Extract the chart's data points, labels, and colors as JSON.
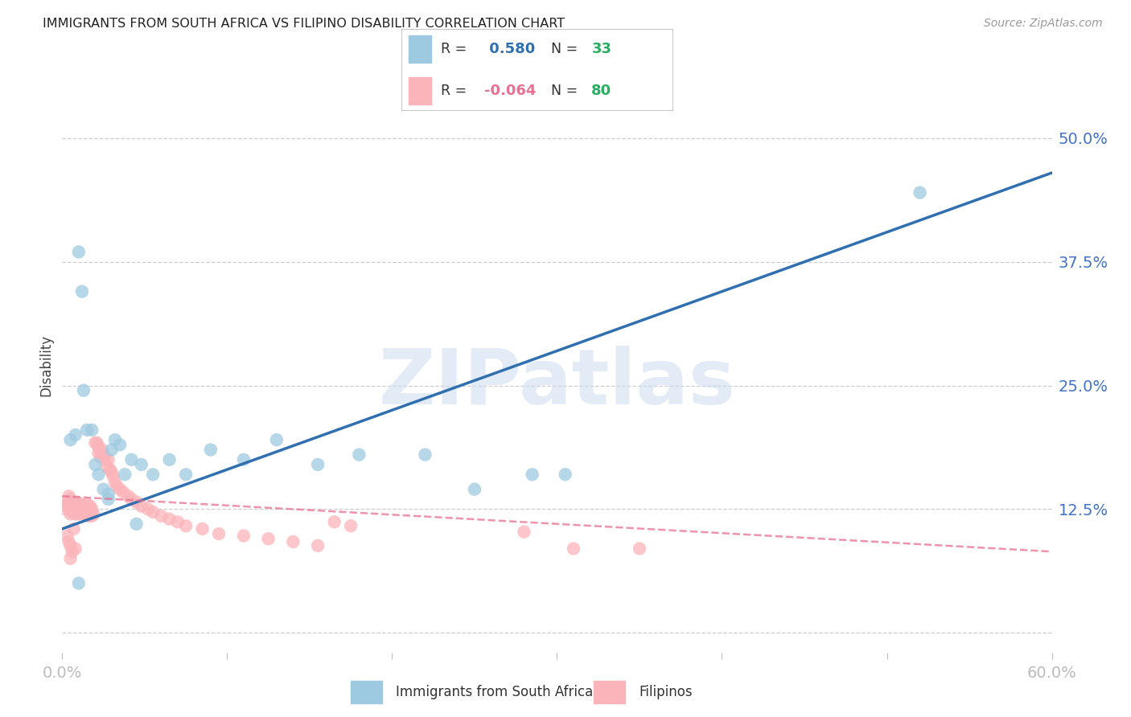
{
  "title": "IMMIGRANTS FROM SOUTH AFRICA VS FILIPINO DISABILITY CORRELATION CHART",
  "source": "Source: ZipAtlas.com",
  "ylabel": "Disability",
  "watermark": "ZIPatlas",
  "x_min": 0.0,
  "x_max": 0.6,
  "y_min": -0.02,
  "y_max": 0.56,
  "y_ticks": [
    0.0,
    0.125,
    0.25,
    0.375,
    0.5
  ],
  "y_tick_labels": [
    "",
    "12.5%",
    "25.0%",
    "37.5%",
    "50.0%"
  ],
  "x_ticks": [
    0.0,
    0.1,
    0.2,
    0.3,
    0.4,
    0.5,
    0.6
  ],
  "x_tick_labels": [
    "0.0%",
    "",
    "",
    "",
    "",
    "",
    "60.0%"
  ],
  "blue_R": 0.58,
  "blue_N": 33,
  "pink_R": -0.064,
  "pink_N": 80,
  "blue_label": "Immigrants from South Africa",
  "pink_label": "Filipinos",
  "blue_dot_color": "#9ecae1",
  "pink_dot_color": "#fbb4b9",
  "blue_line_color": "#3070b0",
  "pink_line_color": "#e87090",
  "axis_color": "#4472C4",
  "grid_color": "#c8c8c8",
  "background_color": "#ffffff",
  "title_color": "#222222",
  "source_color": "#999999",
  "watermark_color": "#ccddef",
  "blue_line_x0": 0.0,
  "blue_line_y0": 0.105,
  "blue_line_x1": 0.6,
  "blue_line_y1": 0.465,
  "pink_line_x0": 0.0,
  "pink_line_y0": 0.138,
  "pink_line_x1": 0.6,
  "pink_line_y1": 0.082,
  "blue_scatter_x": [
    0.005,
    0.008,
    0.01,
    0.012,
    0.013,
    0.015,
    0.018,
    0.02,
    0.022,
    0.025,
    0.028,
    0.03,
    0.032,
    0.038,
    0.042,
    0.048,
    0.055,
    0.065,
    0.075,
    0.09,
    0.11,
    0.13,
    0.155,
    0.18,
    0.22,
    0.25,
    0.285,
    0.305,
    0.52,
    0.028,
    0.035,
    0.045,
    0.01
  ],
  "blue_scatter_y": [
    0.195,
    0.2,
    0.385,
    0.345,
    0.245,
    0.205,
    0.205,
    0.17,
    0.16,
    0.145,
    0.14,
    0.185,
    0.195,
    0.16,
    0.175,
    0.17,
    0.16,
    0.175,
    0.16,
    0.185,
    0.175,
    0.195,
    0.17,
    0.18,
    0.18,
    0.145,
    0.16,
    0.16,
    0.445,
    0.135,
    0.19,
    0.11,
    0.05
  ],
  "pink_scatter_x": [
    0.001,
    0.002,
    0.003,
    0.004,
    0.004,
    0.005,
    0.005,
    0.005,
    0.006,
    0.006,
    0.007,
    0.007,
    0.008,
    0.008,
    0.009,
    0.009,
    0.01,
    0.01,
    0.011,
    0.011,
    0.012,
    0.012,
    0.013,
    0.013,
    0.014,
    0.014,
    0.015,
    0.015,
    0.016,
    0.016,
    0.017,
    0.017,
    0.018,
    0.018,
    0.019,
    0.02,
    0.021,
    0.022,
    0.022,
    0.023,
    0.024,
    0.025,
    0.026,
    0.027,
    0.028,
    0.029,
    0.03,
    0.031,
    0.032,
    0.033,
    0.035,
    0.037,
    0.04,
    0.042,
    0.045,
    0.048,
    0.052,
    0.055,
    0.06,
    0.065,
    0.07,
    0.075,
    0.085,
    0.095,
    0.11,
    0.125,
    0.14,
    0.155,
    0.165,
    0.175,
    0.28,
    0.31,
    0.003,
    0.004,
    0.005,
    0.006,
    0.007,
    0.008,
    0.35,
    0.005
  ],
  "pink_scatter_y": [
    0.13,
    0.125,
    0.128,
    0.132,
    0.138,
    0.12,
    0.128,
    0.135,
    0.122,
    0.13,
    0.125,
    0.132,
    0.12,
    0.128,
    0.125,
    0.132,
    0.12,
    0.128,
    0.125,
    0.13,
    0.122,
    0.128,
    0.12,
    0.125,
    0.122,
    0.128,
    0.125,
    0.13,
    0.118,
    0.125,
    0.122,
    0.128,
    0.118,
    0.125,
    0.12,
    0.192,
    0.192,
    0.182,
    0.188,
    0.178,
    0.185,
    0.18,
    0.175,
    0.168,
    0.175,
    0.165,
    0.162,
    0.158,
    0.152,
    0.148,
    0.145,
    0.142,
    0.138,
    0.135,
    0.132,
    0.128,
    0.125,
    0.122,
    0.118,
    0.115,
    0.112,
    0.108,
    0.105,
    0.1,
    0.098,
    0.095,
    0.092,
    0.088,
    0.112,
    0.108,
    0.102,
    0.085,
    0.098,
    0.092,
    0.088,
    0.082,
    0.105,
    0.085,
    0.085,
    0.075
  ]
}
